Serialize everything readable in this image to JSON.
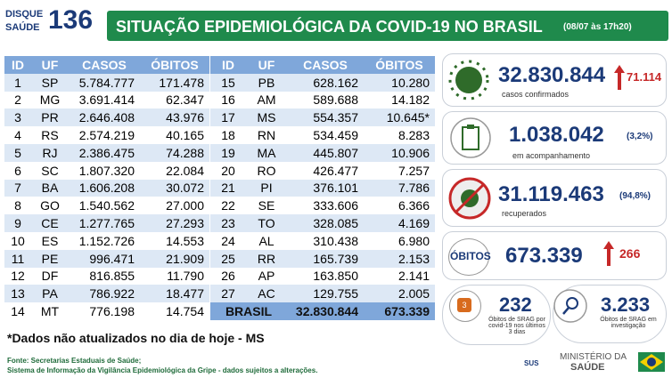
{
  "header": {
    "logo_top": "DISQUE",
    "logo_bottom": "SAÚDE",
    "logo_number": "136",
    "title": "SITUAÇÃO EPIDEMIOLÓGICA DA COVID-19 NO BRASIL",
    "timestamp": "(08/07 às 17h20)"
  },
  "tables": [
    {
      "columns": [
        "ID",
        "UF",
        "CASOS",
        "ÓBITOS"
      ],
      "rows": [
        [
          "1",
          "SP",
          "5.784.777",
          "171.478"
        ],
        [
          "2",
          "MG",
          "3.691.414",
          "62.347"
        ],
        [
          "3",
          "PR",
          "2.646.408",
          "43.976"
        ],
        [
          "4",
          "RS",
          "2.574.219",
          "40.165"
        ],
        [
          "5",
          "RJ",
          "2.386.475",
          "74.288"
        ],
        [
          "6",
          "SC",
          "1.807.320",
          "22.084"
        ],
        [
          "7",
          "BA",
          "1.606.208",
          "30.072"
        ],
        [
          "8",
          "GO",
          "1.540.562",
          "27.000"
        ],
        [
          "9",
          "CE",
          "1.277.765",
          "27.293"
        ],
        [
          "10",
          "ES",
          "1.152.726",
          "14.553"
        ],
        [
          "11",
          "PE",
          "996.471",
          "21.909"
        ],
        [
          "12",
          "DF",
          "816.855",
          "11.790"
        ],
        [
          "13",
          "PA",
          "786.922",
          "18.477"
        ],
        [
          "14",
          "MT",
          "776.198",
          "14.754"
        ]
      ]
    },
    {
      "columns": [
        "ID",
        "UF",
        "CASOS",
        "ÓBITOS"
      ],
      "rows": [
        [
          "15",
          "PB",
          "628.162",
          "10.280"
        ],
        [
          "16",
          "AM",
          "589.688",
          "14.182"
        ],
        [
          "17",
          "MS",
          "554.357",
          "10.645*"
        ],
        [
          "18",
          "RN",
          "534.459",
          "8.283"
        ],
        [
          "19",
          "MA",
          "445.807",
          "10.906"
        ],
        [
          "20",
          "RO",
          "426.477",
          "7.257"
        ],
        [
          "21",
          "PI",
          "376.101",
          "7.786"
        ],
        [
          "22",
          "SE",
          "333.606",
          "6.366"
        ],
        [
          "23",
          "TO",
          "328.085",
          "4.169"
        ],
        [
          "24",
          "AL",
          "310.438",
          "6.980"
        ],
        [
          "25",
          "RR",
          "165.739",
          "2.153"
        ],
        [
          "26",
          "AP",
          "163.850",
          "2.141"
        ],
        [
          "27",
          "AC",
          "129.755",
          "2.005"
        ]
      ],
      "total": [
        "BRASIL",
        "32.830.844",
        "673.339"
      ]
    }
  ],
  "stats": {
    "confirmed": {
      "value": "32.830.844",
      "new": "71.114",
      "label": "casos confirmados"
    },
    "monitoring": {
      "value": "1.038.042",
      "percent": "(3,2%)",
      "label": "em acompanhamento"
    },
    "recovered": {
      "value": "31.119.463",
      "percent": "(94,8%)",
      "label": "recuperados"
    },
    "deaths": {
      "heading": "ÓBITOS",
      "value": "673.339",
      "new": "266"
    },
    "srag_recent": {
      "value": "232",
      "label": "Óbitos de SRAG por covid-19 nos últimos 3 dias",
      "icon": "3"
    },
    "srag_investigation": {
      "value": "3.233",
      "label": "Óbitos de SRAG em investigação"
    }
  },
  "note": "*Dados não atualizados no dia de hoje - MS",
  "footer": {
    "lines": [
      "Fonte: Secretarias Estaduais de Saúde;",
      "Sistema de Informação da Vigilância Epidemiológica da Gripe - dados sujeitos a alterações."
    ]
  },
  "logos": {
    "sus": "SUS",
    "ministry_top": "MINISTÉRIO DA",
    "ministry_bottom": "SAÚDE"
  }
}
